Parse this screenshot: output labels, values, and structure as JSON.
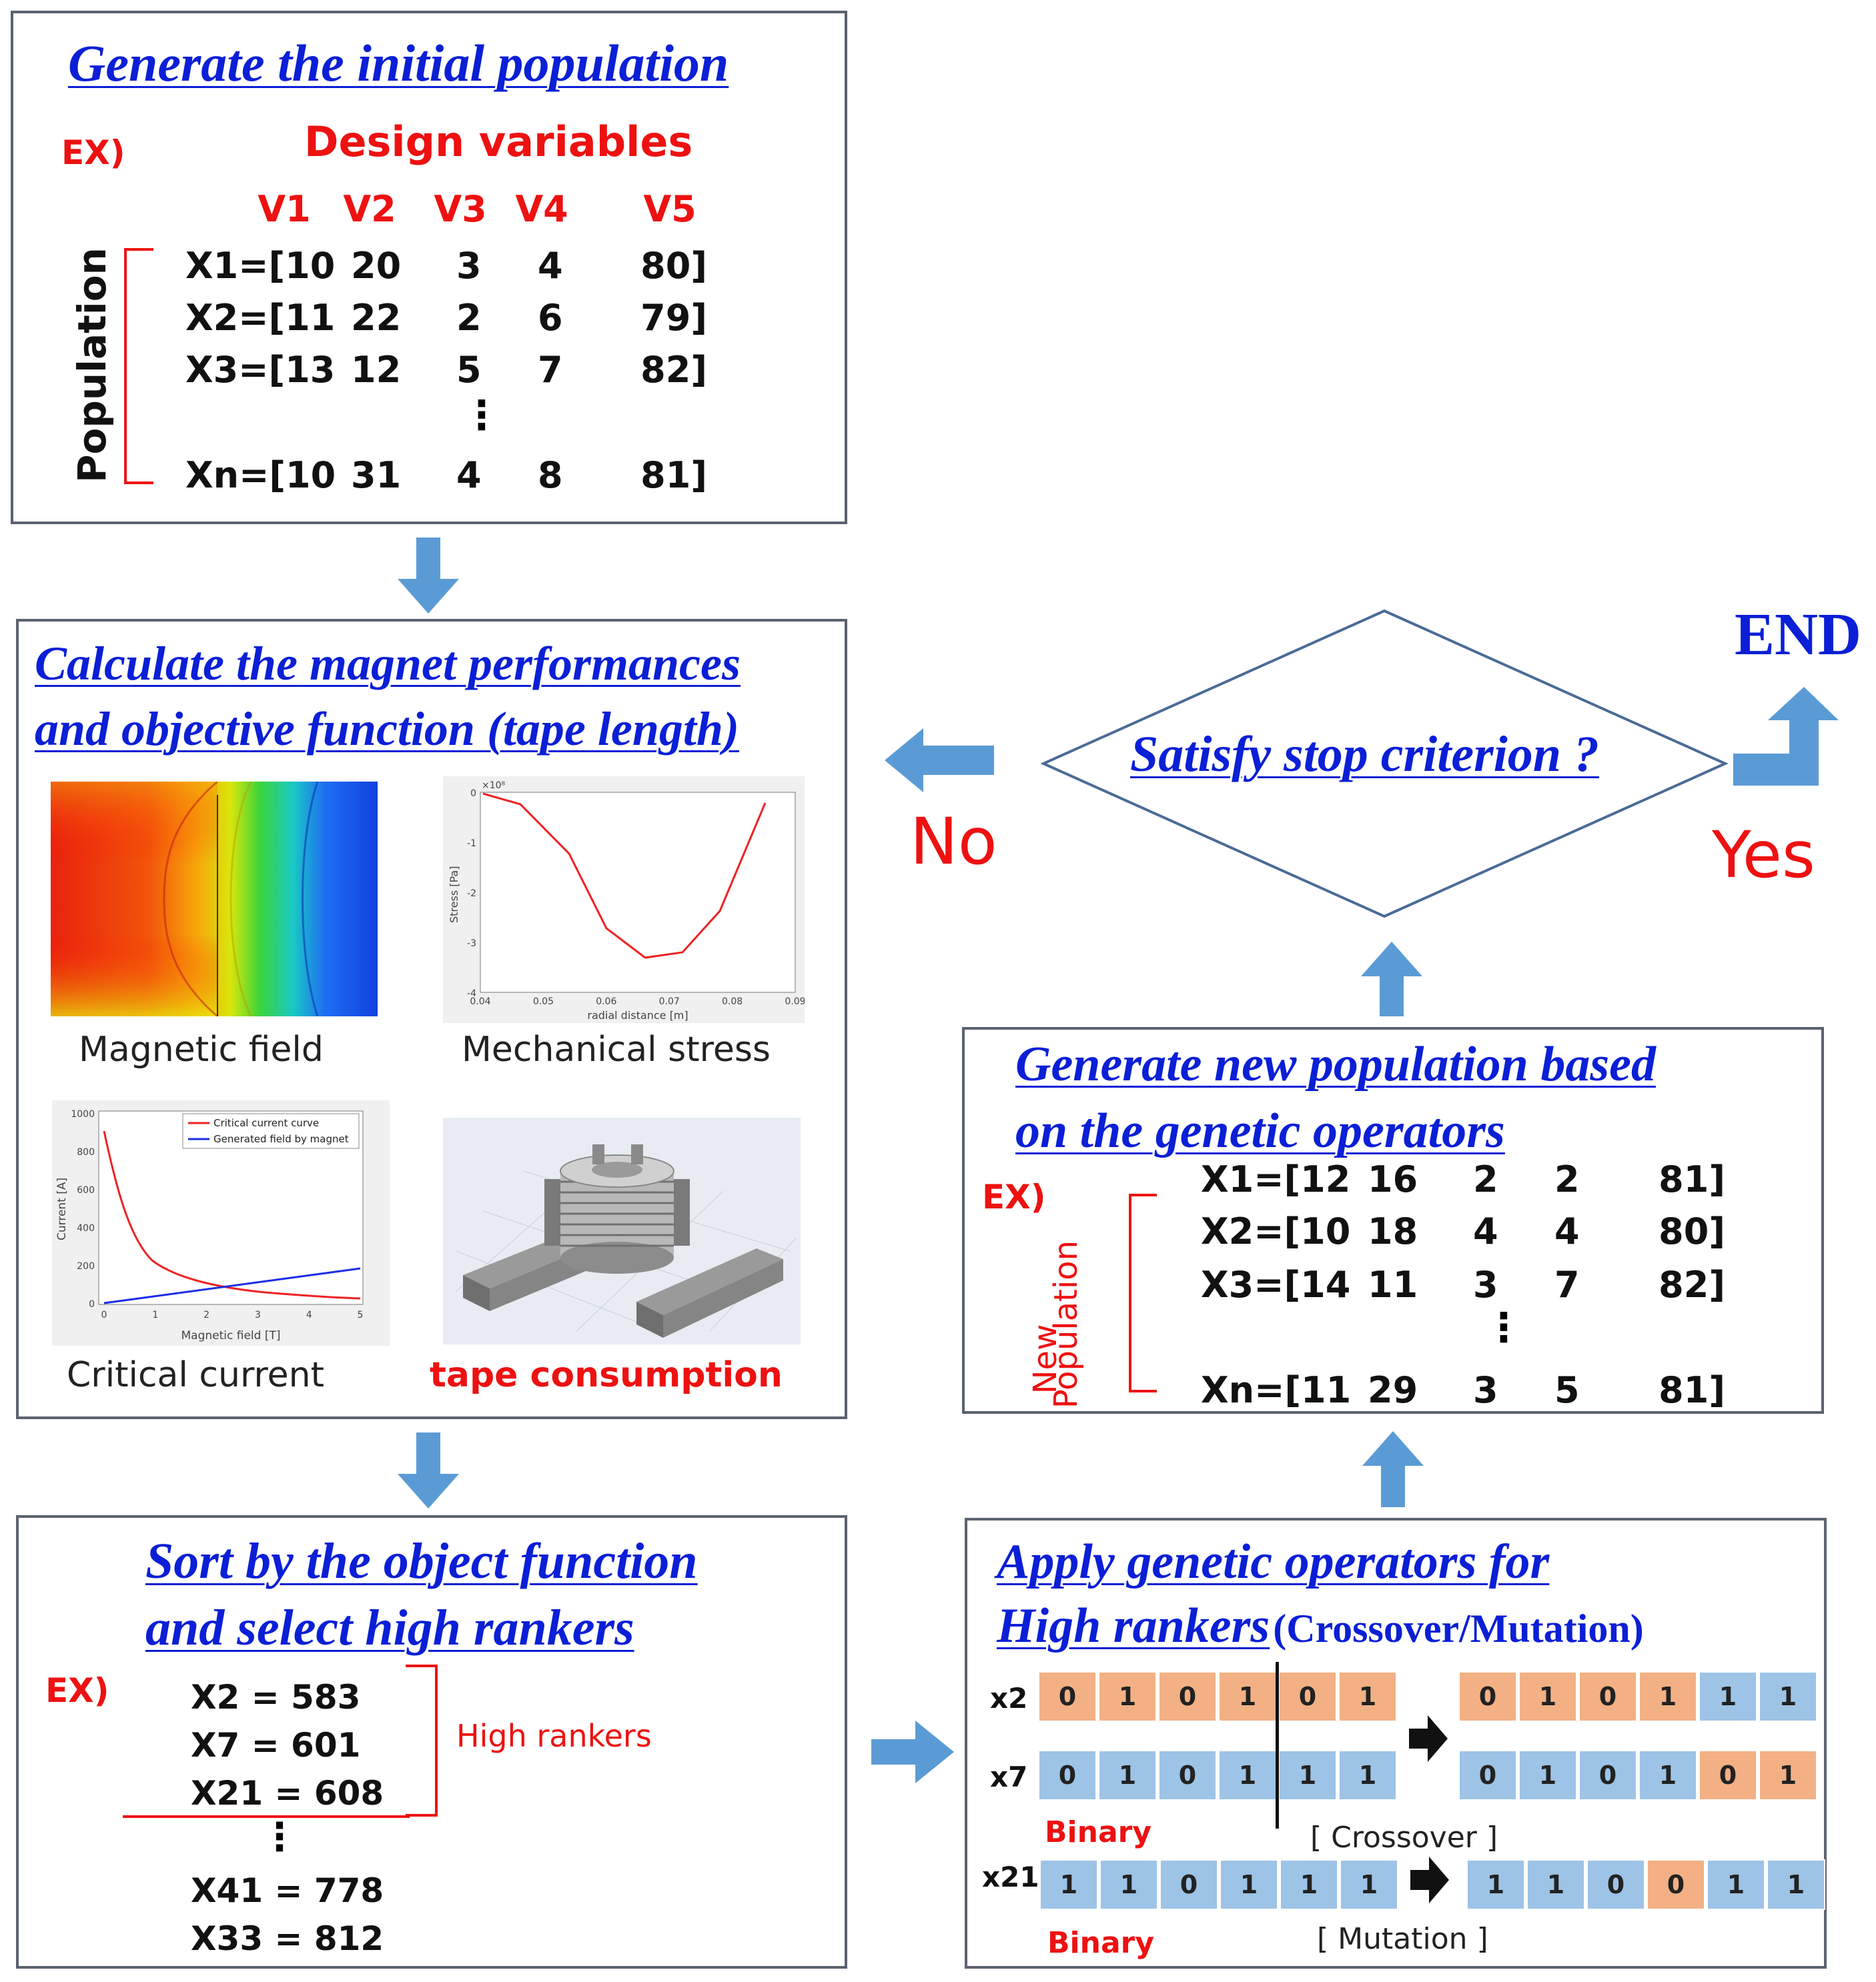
{
  "box1": {
    "title": "Generate the initial population",
    "ex": "EX)",
    "design_label": "Design variables",
    "var_headers": [
      "V1",
      "V2",
      "V3",
      "V4",
      "V5"
    ],
    "population_label": "Population",
    "rows": [
      [
        "X1=[10",
        "20",
        "3",
        "4",
        "80]"
      ],
      [
        "X2=[11",
        "22",
        "2",
        "6",
        "79]"
      ],
      [
        "X3=[13",
        "12",
        "5",
        "7",
        "82]"
      ],
      [
        "Xn=[10",
        "31",
        "4",
        "8",
        "81]"
      ]
    ],
    "dots": "⋮"
  },
  "box2": {
    "title_line1": "Calculate the magnet performances",
    "title_line2": "and objective function (tape length)",
    "captions": {
      "magnetic": "Magnetic field",
      "stress": "Mechanical stress",
      "critical": "Critical current",
      "tape": "tape consumption"
    },
    "stress_plot": {
      "ylabel": "Stress [Pa]",
      "xlabel": "radial distance [m]",
      "exponent": "×10⁸",
      "xticks": [
        "0.04",
        "0.05",
        "0.06",
        "0.07",
        "0.08",
        "0.09"
      ],
      "yticks": [
        "0",
        "-1",
        "-2",
        "-3",
        "-4"
      ]
    },
    "critical_plot": {
      "ylabel": "Current [A]",
      "xlabel": "Magnetic field [T]",
      "xticks": [
        "0",
        "1",
        "2",
        "3",
        "4",
        "5"
      ],
      "yticks": [
        "0",
        "200",
        "400",
        "600",
        "800",
        "1000"
      ],
      "legend1": "Critical current curve",
      "legend2": "Generated field by magnet"
    }
  },
  "box3": {
    "title_line1": "Sort by the object function",
    "title_line2": "and  select  high rankers",
    "ex": "EX)",
    "entries": [
      "X2 = 583",
      "X7 = 601",
      "X21 = 608",
      "X41 = 778",
      "X33 = 812"
    ],
    "high_rankers": "High rankers",
    "dots": "⋮"
  },
  "decision": {
    "text": "Satisfy stop criterion ?",
    "no": "No",
    "yes": "Yes",
    "end": "END"
  },
  "box4": {
    "title_line1": "Generate new population based",
    "title_line2": "on the genetic operators",
    "ex": "EX)",
    "new_label": "New",
    "population_label": "Population",
    "rows": [
      [
        "X1=[12",
        "16",
        "2",
        "2",
        "81]"
      ],
      [
        "X2=[10",
        "18",
        "4",
        "4",
        "80]"
      ],
      [
        "X3=[14",
        "11",
        "3",
        "7",
        "82]"
      ],
      [
        "Xn=[11",
        "29",
        "3",
        "5",
        "81]"
      ]
    ],
    "dots": "⋮"
  },
  "box5": {
    "title_line1": "Apply genetic operators  for",
    "title_line2": "High rankers",
    "title_suffix": "(Crossover/Mutation)",
    "x2_label": "x2",
    "x7_label": "x7",
    "x21_label": "x21",
    "binary": "Binary",
    "crossover": "[ Crossover ]",
    "mutation": "[ Mutation ]",
    "x2_bits": [
      "0",
      "1",
      "0",
      "1",
      "0",
      "1"
    ],
    "x7_bits": [
      "0",
      "1",
      "0",
      "1",
      "1",
      "1"
    ],
    "x2_new": [
      "0",
      "1",
      "0",
      "1",
      "1",
      "1"
    ],
    "x7_new": [
      "0",
      "1",
      "0",
      "1",
      "0",
      "1"
    ],
    "x21_bits": [
      "1",
      "1",
      "0",
      "1",
      "1",
      "1"
    ],
    "x21_new": [
      "1",
      "1",
      "0",
      "0",
      "1",
      "1"
    ]
  },
  "colors": {
    "title_blue": "#0b1fd6",
    "red": "#ee1111",
    "arrow_blue": "#5b9bd5",
    "orange_bit": "#f2b084",
    "blue_bit": "#9dc3e6"
  }
}
